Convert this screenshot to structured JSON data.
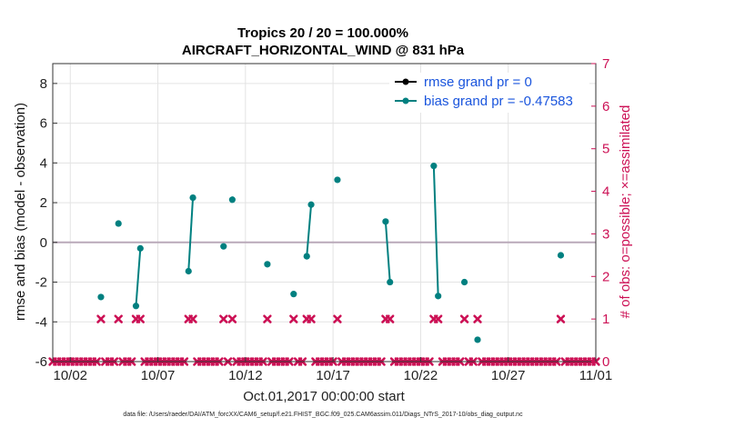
{
  "chart_data": {
    "type": "scatter",
    "title_line1": "Tropics 20 / 20 = 100.000%",
    "title_line2": "AIRCRAFT_HORIZONTAL_WIND @ 831 hPa",
    "ylabel": "rmse and bias (model - observation)",
    "ylabel_right": "# of obs: o=possible; ×=assimilated",
    "xlabel": "Oct.01,2017 00:00:00 start",
    "footer": "data file: /Users/raeder/DAI/ATM_forcXX/CAM6_setup/f.e21.FHIST_BGC.f09_025.CAM6assim.011/Diags_NTrS_2017-10/obs_diag_output.nc",
    "x_unit": "day of October 2017 (Oct 1 00:00 = 1)",
    "xlim": [
      1,
      32
    ],
    "ylim": [
      -6,
      9
    ],
    "ylim_right": [
      0,
      7
    ],
    "yticks": [
      -6,
      -4,
      -2,
      0,
      2,
      4,
      6,
      8
    ],
    "yticks_right": [
      0,
      1,
      2,
      3,
      4,
      5,
      6,
      7
    ],
    "xticks": [
      {
        "x": 2,
        "label": "10/02"
      },
      {
        "x": 7,
        "label": "10/07"
      },
      {
        "x": 12,
        "label": "10/12"
      },
      {
        "x": 17,
        "label": "10/17"
      },
      {
        "x": 22,
        "label": "10/22"
      },
      {
        "x": 27,
        "label": "10/27"
      },
      {
        "x": 32,
        "label": "11/01"
      }
    ],
    "grid": true,
    "zero_line": true,
    "legend_position": "top-right",
    "colors": {
      "rmse": "#000000",
      "bias": "#008080",
      "obs_count": "#cc1155",
      "legend_text": "#1a55dd",
      "zero_line": "#b9a9b9",
      "grid": "#e3e3e3"
    },
    "series": [
      {
        "name": "rmse grand pr = 0",
        "values": []
      },
      {
        "name": "bias grand pr = -0.47583",
        "points": [
          {
            "x": 3.75,
            "y": -2.75
          },
          {
            "x": 4.75,
            "y": 0.95
          },
          {
            "x": 5.75,
            "y": -3.2
          },
          {
            "x": 6.0,
            "y": -0.3
          },
          {
            "x": 8.75,
            "y": -1.45
          },
          {
            "x": 9.0,
            "y": 2.25
          },
          {
            "x": 10.75,
            "y": -0.2
          },
          {
            "x": 11.25,
            "y": 2.15
          },
          {
            "x": 13.25,
            "y": -1.1
          },
          {
            "x": 14.75,
            "y": -2.6
          },
          {
            "x": 15.5,
            "y": -0.7
          },
          {
            "x": 15.75,
            "y": 1.9
          },
          {
            "x": 17.25,
            "y": 3.15
          },
          {
            "x": 20.0,
            "y": 1.05
          },
          {
            "x": 20.25,
            "y": -2.0
          },
          {
            "x": 22.75,
            "y": 3.85
          },
          {
            "x": 23.0,
            "y": -2.7
          },
          {
            "x": 24.5,
            "y": -2.0
          },
          {
            "x": 25.25,
            "y": -4.9
          },
          {
            "x": 30.0,
            "y": -0.65
          }
        ],
        "segments": [
          [
            5.75,
            6.0
          ],
          [
            8.75,
            9.0
          ],
          [
            15.5,
            15.75
          ],
          [
            20.0,
            20.25
          ],
          [
            22.75,
            23.0
          ]
        ]
      }
    ],
    "obs_count_nonzero_x": [
      3.75,
      4.75,
      5.75,
      6.0,
      8.75,
      9.0,
      10.75,
      11.25,
      13.25,
      14.75,
      15.5,
      15.75,
      17.25,
      20.0,
      20.25,
      22.75,
      23.0,
      24.5,
      25.25,
      30.0
    ],
    "obs_count_nonzero_value": 1
  }
}
